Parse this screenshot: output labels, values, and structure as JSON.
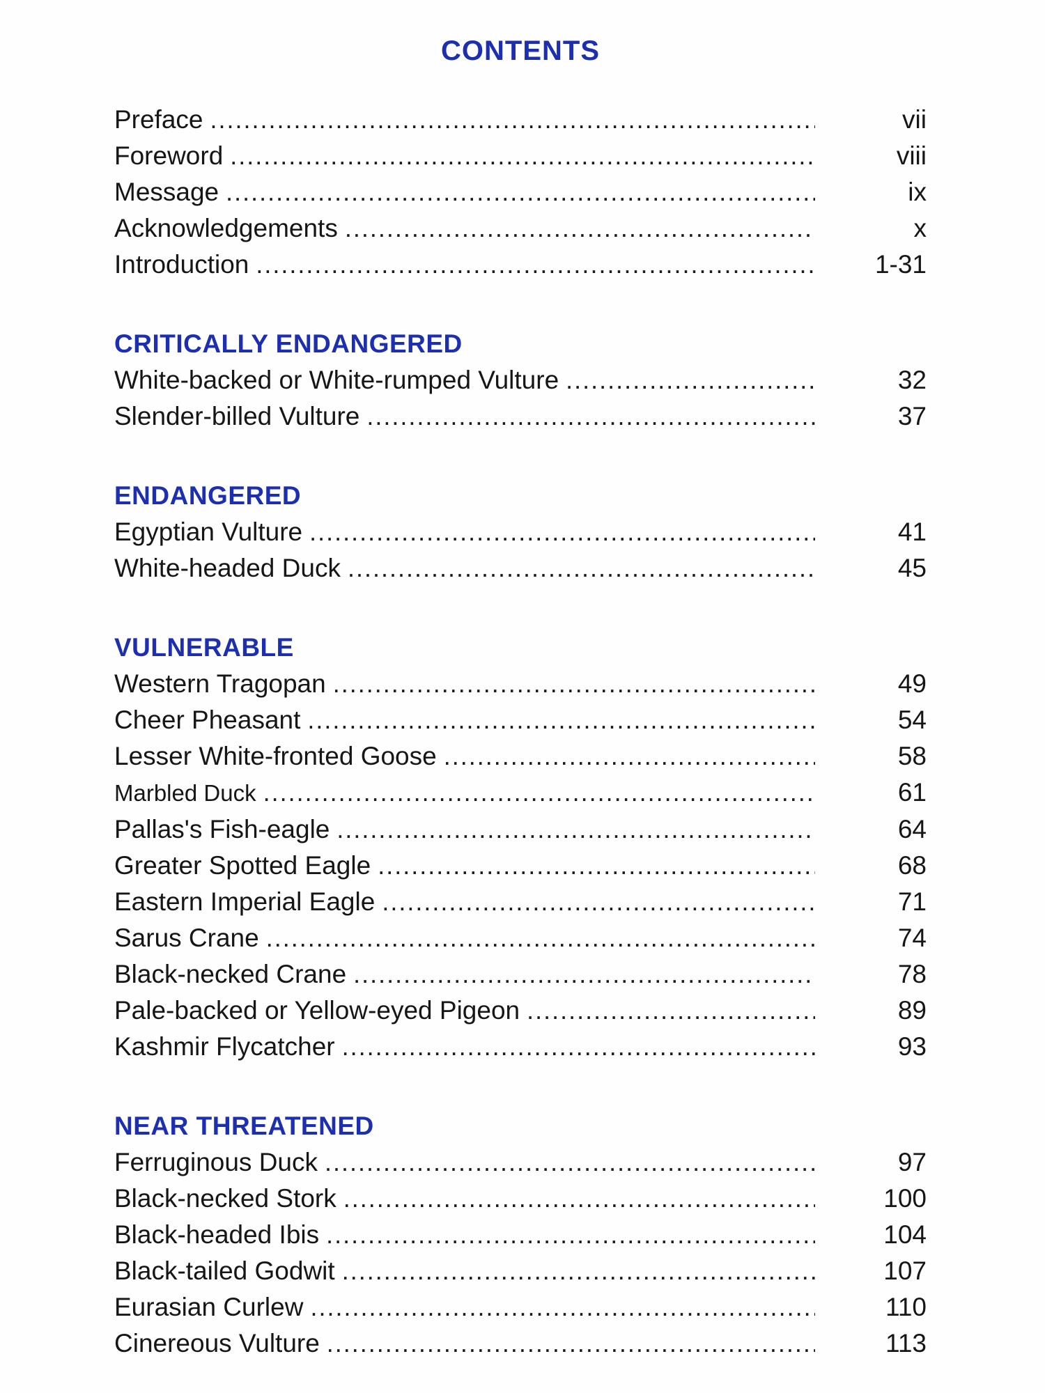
{
  "page": {
    "title": "CONTENTS"
  },
  "colors": {
    "heading_blue": "#1c2fb0",
    "text": "#161616"
  },
  "front_matter": [
    {
      "label": "Preface",
      "page": "vii"
    },
    {
      "label": "Foreword",
      "page": "viii"
    },
    {
      "label": "Message",
      "page": "ix"
    },
    {
      "label": "Acknowledgements",
      "page": "x"
    },
    {
      "label": "Introduction",
      "page": "1-31"
    }
  ],
  "sections": [
    {
      "heading": "CRITICALLY ENDANGERED",
      "entries": [
        {
          "label": "White-backed or White-rumped Vulture",
          "page": "32"
        },
        {
          "label": "Slender-billed Vulture",
          "page": "37"
        }
      ]
    },
    {
      "heading": "ENDANGERED",
      "entries": [
        {
          "label": "Egyptian Vulture",
          "page": "41"
        },
        {
          "label": "White-headed Duck",
          "page": "45"
        }
      ]
    },
    {
      "heading": "VULNERABLE",
      "entries": [
        {
          "label": "Western Tragopan",
          "page": "49"
        },
        {
          "label": "Cheer Pheasant",
          "page": "54"
        },
        {
          "label": "Lesser White-fronted Goose",
          "page": "58"
        },
        {
          "label": "Marbled Duck",
          "page": "61"
        },
        {
          "label": "Pallas's Fish-eagle",
          "page": "64"
        },
        {
          "label": "Greater Spotted Eagle",
          "page": "68"
        },
        {
          "label": "Eastern Imperial Eagle",
          "page": "71"
        },
        {
          "label": "Sarus Crane",
          "page": "74"
        },
        {
          "label": "Black-necked Crane",
          "page": "78"
        },
        {
          "label": "Pale-backed or Yellow-eyed Pigeon",
          "page": "89"
        },
        {
          "label": "Kashmir Flycatcher",
          "page": "93"
        }
      ]
    },
    {
      "heading": "NEAR THREATENED",
      "entries": [
        {
          "label": "Ferruginous Duck",
          "page": "97"
        },
        {
          "label": "Black-necked Stork",
          "page": "100"
        },
        {
          "label": "Black-headed Ibis",
          "page": "104"
        },
        {
          "label": "Black-tailed Godwit",
          "page": "107"
        },
        {
          "label": "Eurasian Curlew",
          "page": "110"
        },
        {
          "label": "Cinereous Vulture",
          "page": "113"
        }
      ]
    }
  ]
}
